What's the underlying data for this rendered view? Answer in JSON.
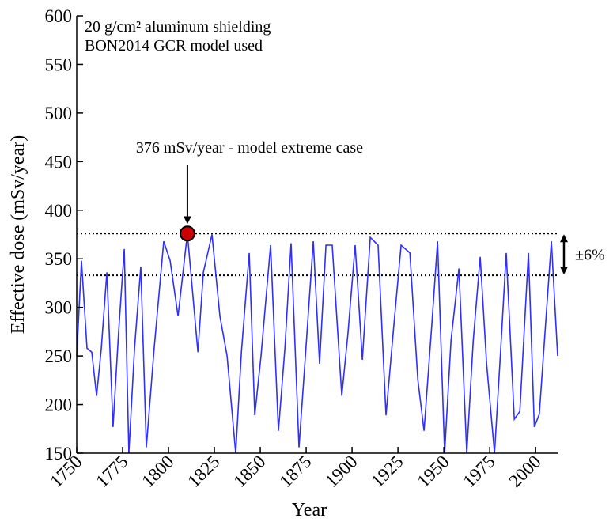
{
  "chart_data": {
    "type": "line",
    "annotations": [
      "20 g/cm² aluminum shielding",
      "BON2014 GCR model used"
    ],
    "callout": {
      "text": "376 mSv/year - model extreme case",
      "x": 1810.3,
      "y": 376,
      "color": "#cc0000"
    },
    "reference_lines": [
      376,
      333
    ],
    "band_label": "±6%",
    "xlabel": "Year",
    "ylabel": "Effective dose (mSv/year)",
    "x": [
      1750,
      1752.6,
      1755.6,
      1758.2,
      1760.8,
      1763.4,
      1766.4,
      1769.8,
      1772.8,
      1775.9,
      1778.4,
      1781.5,
      1784.9,
      1787.9,
      1792.2,
      1797.4,
      1800.9,
      1805.2,
      1810.3,
      1816,
      1819,
      1823.7,
      1828,
      1831.9,
      1836.6,
      1839.7,
      1844,
      1847,
      1850.4,
      1855.6,
      1859.9,
      1863.4,
      1866.8,
      1871.1,
      1874.6,
      1878.9,
      1882.3,
      1885.8,
      1889.2,
      1894.4,
      1897.8,
      1901.7,
      1905.6,
      1909.9,
      1914.2,
      1918.5,
      1922.4,
      1926.7,
      1931.5,
      1935.8,
      1939.2,
      1943.5,
      1946.6,
      1950.4,
      1953.9,
      1958.2,
      1962.5,
      1966,
      1969.8,
      1973.3,
      1977.6,
      1981,
      1984,
      1988.4,
      1991.4,
      1996.1,
      1999.3,
      2002,
      2008.6,
      2012
    ],
    "series": [
      {
        "color": "#2f2fff",
        "values": [
          250,
          348,
          258,
          254,
          209,
          258,
          336,
          177,
          274,
          360,
          150,
          258,
          342,
          156,
          258,
          368,
          348,
          291,
          376,
          254,
          336,
          375,
          291,
          250,
          150,
          254,
          356,
          189,
          250,
          364,
          173,
          258,
          366,
          156,
          250,
          368,
          242,
          364,
          364,
          209,
          274,
          364,
          246,
          372,
          364,
          189,
          274,
          364,
          356,
          226,
          173,
          283,
          368,
          150,
          266,
          340,
          150,
          266,
          352,
          242,
          150,
          258,
          356,
          185,
          193,
          356,
          177,
          190,
          368,
          250
        ]
      }
    ],
    "xlim": [
      1750,
      2012
    ],
    "xticks": [
      1750,
      1775,
      1800,
      1825,
      1850,
      1875,
      1900,
      1925,
      1950,
      1975,
      2000
    ],
    "ylim": [
      150,
      600
    ],
    "yticks": [
      150,
      200,
      250,
      300,
      350,
      400,
      450,
      500,
      550,
      600
    ]
  }
}
